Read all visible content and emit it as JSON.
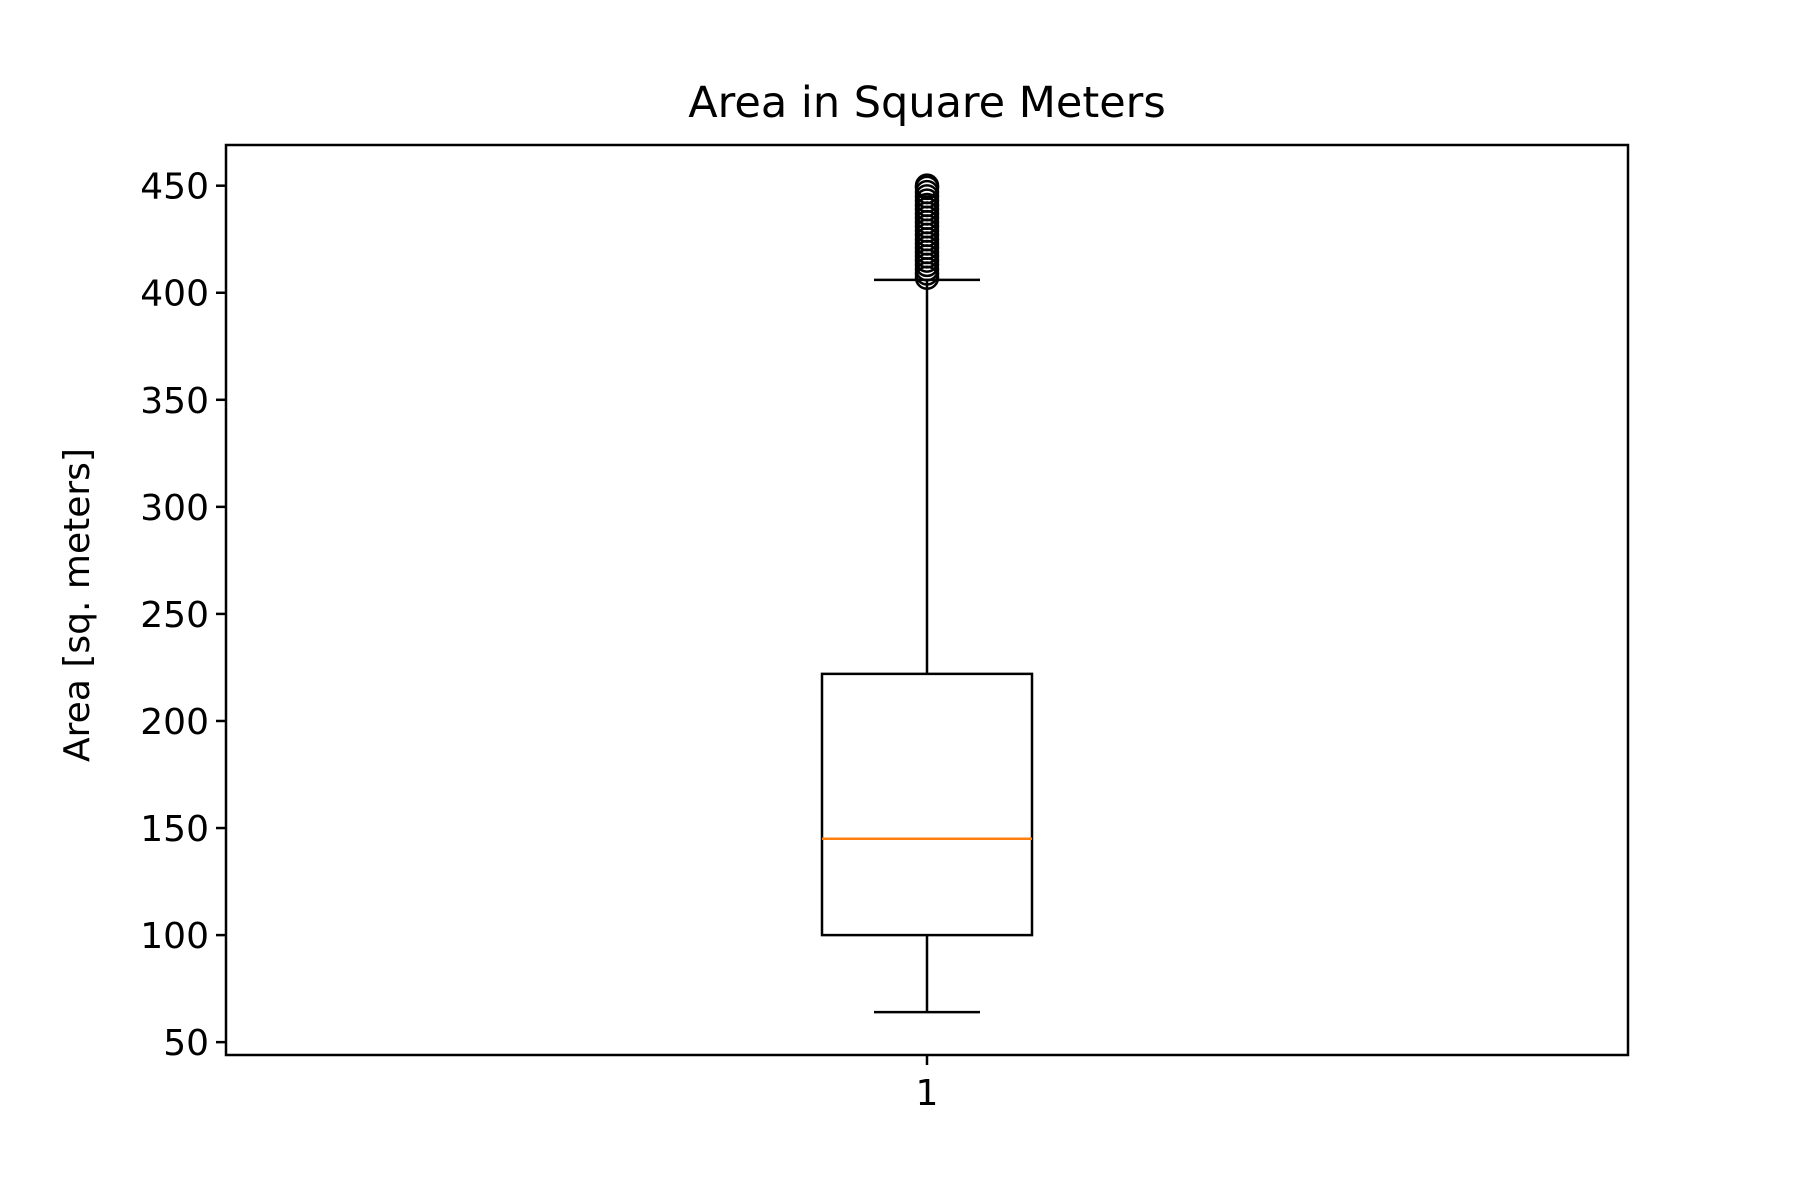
{
  "chart_data": {
    "type": "box",
    "title": "Area in Square Meters",
    "xlabel": "",
    "ylabel": "Area [sq. meters]",
    "categories": [
      "1"
    ],
    "ylim": [
      44,
      469
    ],
    "yticks": [
      50,
      100,
      150,
      200,
      250,
      300,
      350,
      400,
      450
    ],
    "grid": false,
    "legend": "none",
    "boxes": [
      {
        "category": "1",
        "whisker_low": 64,
        "q1": 100,
        "median": 145,
        "q3": 222,
        "whisker_high": 406,
        "outliers": [
          407,
          409,
          411,
          413,
          415,
          417,
          419,
          421,
          423,
          425,
          427,
          429,
          431,
          433,
          435,
          437,
          439,
          441,
          443,
          445,
          447,
          449,
          450
        ]
      }
    ],
    "colors": {
      "box": "#000000",
      "median": "#ff7f0e",
      "outlier": "#000000"
    }
  }
}
